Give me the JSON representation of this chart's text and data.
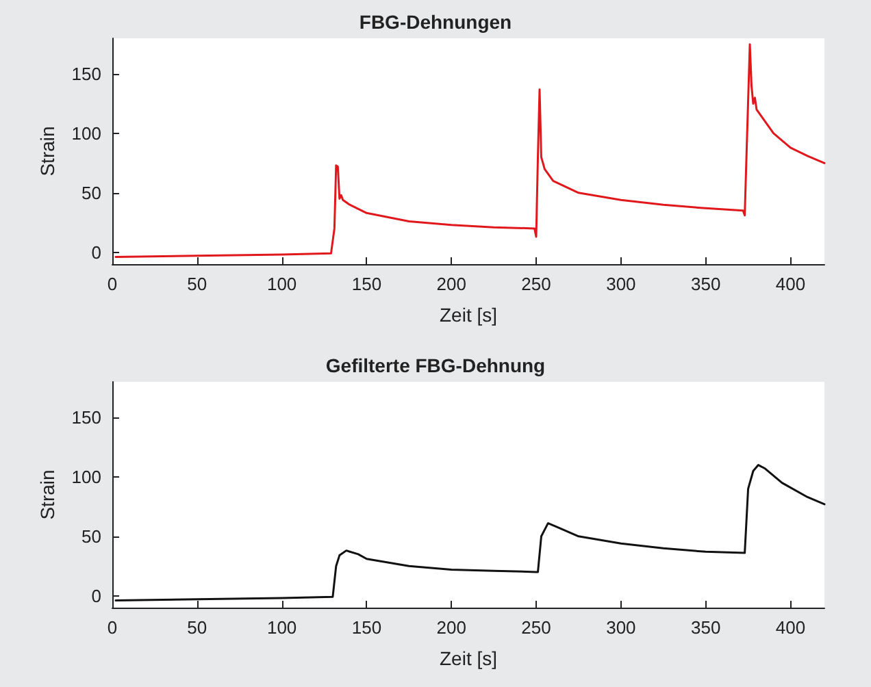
{
  "chart_data": [
    {
      "type": "line",
      "title": "FBG-Dehnungen",
      "xlabel": "Zeit [s]",
      "ylabel": "Strain",
      "xlim": [
        0,
        420
      ],
      "ylim": [
        -10,
        180
      ],
      "xticks": [
        0,
        50,
        100,
        150,
        200,
        250,
        300,
        350,
        400
      ],
      "yticks": [
        0,
        50,
        100,
        150
      ],
      "marker": "none",
      "line_style": "solid",
      "series": [
        {
          "color": "#e0181c",
          "x": [
            2,
            50,
            100,
            129,
            131,
            132,
            133,
            134,
            135,
            136,
            140,
            150,
            175,
            200,
            225,
            249,
            250,
            251,
            252,
            253,
            255,
            260,
            275,
            300,
            325,
            350,
            372,
            373,
            374,
            376,
            377,
            378,
            379,
            380,
            390,
            400,
            410,
            420
          ],
          "values": [
            -4,
            -3,
            -2,
            -1,
            20,
            73,
            72,
            45,
            48,
            44,
            40,
            33,
            26,
            23,
            21,
            20,
            13,
            80,
            137,
            80,
            70,
            60,
            50,
            44,
            40,
            37,
            35,
            31,
            80,
            175,
            140,
            125,
            130,
            120,
            100,
            88,
            81,
            75
          ]
        }
      ]
    },
    {
      "type": "line",
      "title": "Gefilterte FBG-Dehnung",
      "xlabel": "Zeit [s]",
      "ylabel": "Strain",
      "xlim": [
        0,
        420
      ],
      "ylim": [
        -10,
        180
      ],
      "xticks": [
        0,
        50,
        100,
        150,
        200,
        250,
        300,
        350,
        400
      ],
      "yticks": [
        0,
        50,
        100,
        150
      ],
      "marker": "none",
      "line_style": "solid",
      "series": [
        {
          "color": "#111111",
          "x": [
            2,
            50,
            100,
            130,
            132,
            134,
            138,
            145,
            150,
            175,
            200,
            225,
            250,
            251,
            253,
            257,
            262,
            275,
            300,
            325,
            350,
            373,
            375,
            378,
            381,
            385,
            395,
            410,
            420
          ],
          "values": [
            -4,
            -3,
            -2,
            -1,
            25,
            34,
            38,
            35,
            31,
            25,
            22,
            21,
            20,
            20,
            50,
            61,
            58,
            50,
            44,
            40,
            37,
            36,
            90,
            105,
            110,
            107,
            95,
            83,
            77
          ]
        }
      ]
    }
  ]
}
